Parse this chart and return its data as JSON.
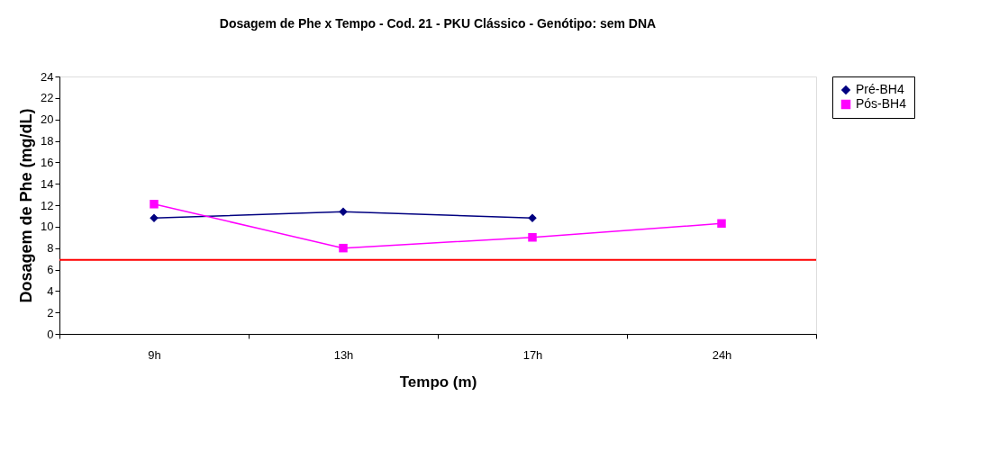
{
  "chart_data": {
    "type": "line",
    "title": "Dosagem de Phe x Tempo - Cod. 21 - PKU Clássico - Genótipo: sem DNA",
    "xlabel": "Tempo (m)",
    "ylabel": "Dosagem  de Phe (mg/dL)",
    "categories": [
      "9h",
      "13h",
      "17h",
      "24h"
    ],
    "series": [
      {
        "name": "Pré-BH4",
        "color": "#000080",
        "marker": "diamond",
        "values": [
          10.8,
          11.4,
          10.8,
          null
        ]
      },
      {
        "name": "Pós-BH4",
        "color": "#ff00ff",
        "marker": "square",
        "values": [
          12.1,
          8.0,
          9.0,
          10.3
        ]
      }
    ],
    "ylim": [
      0,
      24
    ],
    "yticks": [
      0,
      2,
      4,
      6,
      8,
      10,
      12,
      14,
      16,
      18,
      20,
      22,
      24
    ],
    "ref_lines": [
      {
        "axis": "y",
        "value": 6.9,
        "color": "#ff0000"
      }
    ],
    "grid": false,
    "legend": "right"
  }
}
